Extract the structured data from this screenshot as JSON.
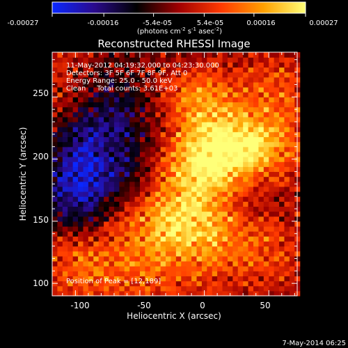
{
  "colorbar": {
    "ticks": [
      "-0.00027",
      "-0.00016",
      "-5.4e-05",
      "5.4e-05",
      "0.00016",
      "0.00027"
    ],
    "tick_values": [
      -0.00027,
      -0.00016,
      -5.4e-05,
      5.4e-05,
      0.00016,
      0.00027
    ],
    "range": [
      -0.00027,
      0.00027
    ],
    "unit_parts": [
      "(photons cm",
      "-2",
      " s",
      "-1",
      " asec",
      "-2",
      ")"
    ],
    "colormap": [
      "#0a28ff",
      "#2a0a8c",
      "#000000",
      "#a00000",
      "#ff3a00",
      "#ffa000",
      "#ffff78"
    ]
  },
  "chart_data": {
    "type": "heatmap",
    "title": "Reconstructed RHESSI Image",
    "xlabel": "Heliocentric X (arcsec)",
    "ylabel": "Heliocentric Y (arcsec)",
    "xlim": [
      -118,
      72
    ],
    "ylim": [
      90,
      286
    ],
    "xticks": [
      -100,
      -50,
      0,
      50
    ],
    "yticks": [
      100,
      150,
      200,
      250
    ],
    "x_tick_labels": [
      "-100",
      "-50",
      "0",
      "50"
    ],
    "y_tick_labels": [
      "100",
      "150",
      "200",
      "250"
    ],
    "annotations": [
      "11-May-2012 04:19:32.000 to 04:23:30.000",
      "Detectors: 3F 5F 6F 7F 8F 9F, Att 0",
      "Energy Range: 25.0 - 50.0 keV",
      "Clean     Total counts: 3.61E+03"
    ],
    "peak_label": "Position of Peak = [12,189]",
    "peak_position": [
      12,
      189
    ],
    "emission_components": [
      {
        "cx": 25,
        "cy": 210,
        "sx": 30,
        "sy": 20,
        "amp": 1.0
      },
      {
        "cx": -8,
        "cy": 180,
        "sx": 25,
        "sy": 28,
        "amp": 0.65
      },
      {
        "cx": -5,
        "cy": 250,
        "sx": 22,
        "sy": 16,
        "amp": 0.55
      },
      {
        "cx": -35,
        "cy": 150,
        "sx": 28,
        "sy": 18,
        "amp": 0.45
      },
      {
        "cx": 20,
        "cy": 130,
        "sx": 40,
        "sy": 22,
        "amp": 0.42
      },
      {
        "cx": -60,
        "cy": 110,
        "sx": 40,
        "sy": 20,
        "amp": 0.38
      },
      {
        "cx": 55,
        "cy": 255,
        "sx": 18,
        "sy": 22,
        "amp": 0.35
      },
      {
        "cx": -110,
        "cy": 250,
        "sx": 20,
        "sy": 30,
        "amp": 0.3
      },
      {
        "cx": -100,
        "cy": 120,
        "sx": 18,
        "sy": 20,
        "amp": 0.32
      }
    ],
    "negative_components": [
      {
        "cx": -75,
        "cy": 230,
        "sx": 28,
        "sy": 30,
        "amp": 0.55
      },
      {
        "cx": -100,
        "cy": 180,
        "sx": 18,
        "sy": 30,
        "amp": 0.75
      },
      {
        "cx": -60,
        "cy": 180,
        "sx": 20,
        "sy": 20,
        "amp": 0.3
      },
      {
        "cx": 40,
        "cy": 170,
        "sx": 14,
        "sy": 14,
        "amp": 0.2
      }
    ]
  },
  "footer": {
    "timestamp": "7-May-2014 06:25"
  }
}
